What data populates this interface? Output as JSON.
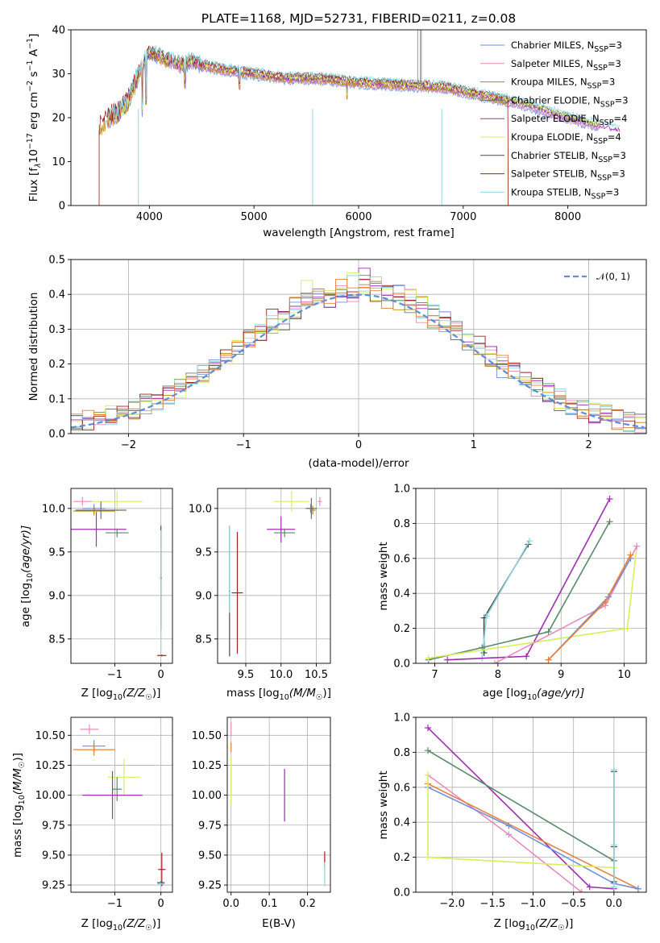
{
  "title": "PLATE=1168, MJD=52731, FIBERID=0211, z=0.08",
  "colors": {
    "Chabrier MILES": "#6f8fdc",
    "Salpeter MILES": "#e88bbe",
    "Kroupa MILES": "#b8860b",
    "Chabrier ELODIE": "#6f6f6f",
    "Salpeter ELODIE": "#9d2fb0",
    "Kroupa ELODIE": "#d7f05a",
    "Chabrier STELIB": "#4a4a4a",
    "Salpeter STELIB": "#a01f1f",
    "Kroupa STELIB": "#8fd8e0",
    "green": "#5a8a6a",
    "orange": "#e8803a"
  },
  "chart_data": [
    {
      "type": "line",
      "panel": "spectrum",
      "title": "PLATE=1168, MJD=52731, FIBERID=0211, z=0.08",
      "xlabel": "wavelength [Angstrom, rest frame]",
      "ylabel_main": "Flux [f",
      "ylabel_sub": "λ",
      "ylabel_rest": "10",
      "ylabel_exp": "−17",
      "ylabel_tail": " erg cm",
      "ylabel_exp2": "−2",
      "ylabel_s": " s",
      "ylabel_exp3": "−1",
      "ylabel_a": " A",
      "ylabel_exp4": "−1",
      "ylabel_end": "]",
      "xlim": [
        3250,
        8750
      ],
      "ylim": [
        0,
        40
      ],
      "xticks": [
        "4000",
        "5000",
        "6000",
        "7000",
        "8000"
      ],
      "yticks": [
        "0",
        "10",
        "20",
        "30",
        "40"
      ],
      "legend_position": "top-right",
      "legend": [
        {
          "base": "Chabrier MILES, N",
          "sub": "SSP",
          "tail": "=3"
        },
        {
          "base": "Salpeter MILES, N",
          "sub": "SSP",
          "tail": "=3"
        },
        {
          "base": "Kroupa MILES, N",
          "sub": "SSP",
          "tail": "=3"
        },
        {
          "base": "Chabrier ELODIE, N",
          "sub": "SSP",
          "tail": "=3"
        },
        {
          "base": "Salpeter ELODIE, N",
          "sub": "SSP",
          "tail": "=4"
        },
        {
          "base": "Kroupa ELODIE, N",
          "sub": "SSP",
          "tail": "=4"
        },
        {
          "base": "Chabrier STELIB, N",
          "sub": "SSP",
          "tail": "=3"
        },
        {
          "base": "Salpeter STELIB, N",
          "sub": "SSP",
          "tail": "=3"
        },
        {
          "base": "Kroupa STELIB, N",
          "sub": "SSP",
          "tail": "=3"
        }
      ],
      "series_shape": [
        [
          3500,
          17
        ],
        [
          3600,
          20
        ],
        [
          3700,
          21
        ],
        [
          3800,
          24
        ],
        [
          3900,
          30
        ],
        [
          3950,
          33
        ],
        [
          4000,
          35
        ],
        [
          4100,
          34
        ],
        [
          4200,
          33
        ],
        [
          4300,
          32
        ],
        [
          4400,
          33
        ],
        [
          4500,
          32
        ],
        [
          4700,
          31
        ],
        [
          5000,
          30
        ],
        [
          5300,
          29
        ],
        [
          5600,
          29
        ],
        [
          6000,
          28
        ],
        [
          6400,
          27.5
        ],
        [
          6800,
          27
        ],
        [
          7200,
          25
        ],
        [
          7600,
          23
        ],
        [
          8000,
          20
        ],
        [
          8500,
          17
        ]
      ]
    },
    {
      "type": "bar",
      "panel": "residual-histogram",
      "xlabel": "(data-model)/error",
      "ylabel": "Normed distribution",
      "xlim": [
        -2.5,
        2.5
      ],
      "ylim": [
        0,
        0.5
      ],
      "xticks": [
        "−2",
        "−1",
        "0",
        "1",
        "2"
      ],
      "yticks": [
        "0.0",
        "0.1",
        "0.2",
        "0.3",
        "0.4",
        "0.5"
      ],
      "legend_position": "top-right",
      "legend_label": "N(0,1)",
      "bin_width": 0.1,
      "gaussian": {
        "mean": 0,
        "sigma": 1
      }
    },
    {
      "type": "scatter",
      "panel": "age-vs-Z",
      "xlabel": "Z [log10(Z/Z☉)]",
      "ylabel": "age  [log10(age/yr)]",
      "xlim": [
        -1.95,
        0.25
      ],
      "ylim": [
        8.22,
        10.23
      ],
      "xticks": [
        "−1",
        "0"
      ],
      "yticks": [
        "8.5",
        "9.0",
        "9.5",
        "10.0"
      ],
      "points": [
        {
          "model": "Salpeter MILES",
          "x": -1.7,
          "y": 10.08,
          "xerr": 0.2,
          "yerr": 0.05
        },
        {
          "model": "Kroupa ELODIE",
          "x": -0.95,
          "y": 10.08,
          "xerr": 0.55,
          "yerr": 0.12
        },
        {
          "model": "Chabrier MILES",
          "x": -1.45,
          "y": 10.0,
          "xerr": 0.25,
          "yerr": 0.05
        },
        {
          "model": "Kroupa MILES",
          "x": -1.45,
          "y": 9.97,
          "xerr": 0.45,
          "yerr": 0.05
        },
        {
          "model": "Chabrier ELODIE",
          "x": -1.3,
          "y": 9.98,
          "xerr": 0.55,
          "yerr": 0.1
        },
        {
          "model": "Salpeter ELODIE",
          "x": -1.4,
          "y": 9.76,
          "xerr": 0.65,
          "yerr": 0.2
        },
        {
          "model": "green",
          "x": -0.95,
          "y": 9.72,
          "xerr": 0.25,
          "yerr": 0.05
        },
        {
          "model": "Chabrier STELIB",
          "x": 0.0,
          "y": 9.2,
          "xerr": 0.02,
          "yerr": 0.6
        },
        {
          "model": "Kroupa STELIB",
          "x": 0.0,
          "y": 9.05,
          "xerr": 0.02,
          "yerr": 0.7
        },
        {
          "model": "Salpeter STELIB",
          "x": 0.02,
          "y": 8.31,
          "xerr": 0.1,
          "yerr": 0.01
        }
      ]
    },
    {
      "type": "scatter",
      "panel": "age-vs-mass",
      "xlabel": "mass [log10(M/M☉)]",
      "xlim": [
        9.1,
        10.7
      ],
      "ylim": [
        8.22,
        10.23
      ],
      "xticks": [
        "9.5",
        "10.0",
        "10.5"
      ],
      "yticks": [
        "8.5",
        "9.0",
        "9.5",
        "10.0"
      ],
      "points": [
        {
          "model": "Salpeter MILES",
          "x": 10.55,
          "y": 10.08,
          "xerr": 0.03,
          "yerr": 0.05
        },
        {
          "model": "Kroupa ELODIE",
          "x": 10.15,
          "y": 10.08,
          "xerr": 0.25,
          "yerr": 0.12
        },
        {
          "model": "Chabrier MILES",
          "x": 10.42,
          "y": 10.0,
          "xerr": 0.05,
          "yerr": 0.05
        },
        {
          "model": "Kroupa MILES",
          "x": 10.45,
          "y": 9.98,
          "xerr": 0.04,
          "yerr": 0.05
        },
        {
          "model": "Chabrier ELODIE",
          "x": 10.43,
          "y": 10.0,
          "xerr": 0.08,
          "yerr": 0.12
        },
        {
          "model": "Salpeter ELODIE",
          "x": 10.0,
          "y": 9.76,
          "xerr": 0.2,
          "yerr": 0.15
        },
        {
          "model": "green",
          "x": 10.05,
          "y": 9.72,
          "xerr": 0.15,
          "yerr": 0.05
        },
        {
          "model": "Chabrier STELIB",
          "x": 9.27,
          "y": 9.05,
          "xerr": 0.01,
          "yerr": 0.75
        },
        {
          "model": "Kroupa STELIB",
          "x": 9.27,
          "y": 9.3,
          "xerr": 0.01,
          "yerr": 0.5
        },
        {
          "model": "Salpeter STELIB",
          "x": 9.38,
          "y": 9.03,
          "xerr": 0.08,
          "yerr": 0.7
        }
      ]
    },
    {
      "type": "line",
      "panel": "mass-weight-vs-age",
      "xlabel": "age  [log10(age/yr)]",
      "ylabel": "mass weight",
      "xlim": [
        6.7,
        10.35
      ],
      "ylim": [
        0,
        1
      ],
      "xticks": [
        "7",
        "8",
        "9",
        "10"
      ],
      "yticks": [
        "0.0",
        "0.2",
        "0.4",
        "0.6",
        "0.8",
        "1.0"
      ],
      "series": [
        {
          "model": "Chabrier STELIB",
          "x": [
            7.78,
            7.78,
            8.48
          ],
          "y": [
            0.06,
            0.26,
            0.68
          ]
        },
        {
          "model": "Kroupa STELIB",
          "x": [
            7.75,
            7.82,
            8.5
          ],
          "y": [
            0.03,
            0.27,
            0.7
          ]
        },
        {
          "model": "Salpeter ELODIE",
          "x": [
            7.2,
            8.45,
            9.77
          ],
          "y": [
            0.02,
            0.04,
            0.94
          ]
        },
        {
          "model": "green",
          "x": [
            6.9,
            7.75,
            8.8,
            9.77
          ],
          "y": [
            0.02,
            0.09,
            0.18,
            0.81
          ]
        },
        {
          "model": "Kroupa ELODIE",
          "x": [
            6.9,
            10.05,
            10.2
          ],
          "y": [
            0.03,
            0.2,
            0.67
          ]
        },
        {
          "model": "Salpeter MILES",
          "x": [
            7.95,
            9.7,
            10.2
          ],
          "y": [
            0.0,
            0.33,
            0.67
          ]
        },
        {
          "model": "Chabrier MILES",
          "x": [
            8.8,
            9.75,
            10.1
          ],
          "y": [
            0.02,
            0.38,
            0.6
          ]
        },
        {
          "model": "orange",
          "x": [
            8.8,
            9.7,
            10.1
          ],
          "y": [
            0.02,
            0.35,
            0.62
          ]
        }
      ]
    },
    {
      "type": "scatter",
      "panel": "mass-vs-Z",
      "xlabel": "Z [log10(Z/Z☉)]",
      "ylabel": "mass [log10(M/M☉)]",
      "xlim": [
        -1.95,
        0.25
      ],
      "ylim": [
        9.19,
        10.65
      ],
      "xticks": [
        "−1",
        "0"
      ],
      "yticks": [
        "9.25",
        "9.50",
        "9.75",
        "10.00",
        "10.25",
        "10.50"
      ],
      "points": [
        {
          "model": "Salpeter MILES",
          "x": -1.55,
          "y": 10.55,
          "xerr": 0.2,
          "yerr": 0.04
        },
        {
          "model": "Chabrier MILES",
          "x": -1.45,
          "y": 10.41,
          "xerr": 0.25,
          "yerr": 0.05
        },
        {
          "model": "orange",
          "x": -1.45,
          "y": 10.38,
          "xerr": 0.45,
          "yerr": 0.05
        },
        {
          "model": "Kroupa ELODIE",
          "x": -0.8,
          "y": 10.15,
          "xerr": 0.35,
          "yerr": 0.15
        },
        {
          "model": "green",
          "x": -0.95,
          "y": 10.05,
          "xerr": 0.1,
          "yerr": 0.1
        },
        {
          "model": "Salpeter ELODIE",
          "x": -1.05,
          "y": 10.0,
          "xerr": 0.65,
          "yerr": 0.2
        },
        {
          "model": "Salpeter STELIB",
          "x": 0.02,
          "y": 9.38,
          "xerr": 0.08,
          "yerr": 0.14
        },
        {
          "model": "Chabrier STELIB",
          "x": 0.0,
          "y": 9.27,
          "xerr": 0.08,
          "yerr": 0.01
        },
        {
          "model": "Kroupa STELIB",
          "x": 0.0,
          "y": 9.26,
          "xerr": 0.08,
          "yerr": 0.01
        }
      ]
    },
    {
      "type": "scatter",
      "panel": "mass-vs-EBV",
      "xlabel": "E(B-V)",
      "xlim": [
        -0.01,
        0.26
      ],
      "ylim": [
        9.19,
        10.65
      ],
      "xticks": [
        "0.0",
        "0.1",
        "0.2"
      ],
      "yticks": [
        "9.25",
        "9.50",
        "9.75",
        "10.00",
        "10.25",
        "10.50"
      ],
      "points": [
        {
          "model": "Salpeter MILES",
          "x": 0.0,
          "y": 10.55,
          "yerr": 0.06
        },
        {
          "model": "orange",
          "x": 0.0,
          "y": 10.4,
          "yerr": 0.04
        },
        {
          "model": "Kroupa ELODIE",
          "x": 0.0,
          "y": 10.12,
          "yerr": 0.2
        },
        {
          "model": "Salpeter ELODIE",
          "x": 0.14,
          "y": 10.0,
          "yerr": 0.22
        },
        {
          "model": "Salpeter STELIB",
          "x": 0.245,
          "y": 9.46,
          "yerr": 0.07
        },
        {
          "model": "Kroupa STELIB",
          "x": 0.245,
          "y": 9.34,
          "yerr": 0.1
        }
      ]
    },
    {
      "type": "line",
      "panel": "mass-weight-vs-Z",
      "xlabel": "Z [log10(Z/Z☉)]",
      "ylabel": "mass weight",
      "xlim": [
        -2.45,
        0.4
      ],
      "ylim": [
        0,
        1
      ],
      "xticks": [
        "−2.0",
        "−1.5",
        "−1.0",
        "−0.5",
        "0.0"
      ],
      "yticks": [
        "0.0",
        "0.2",
        "0.4",
        "0.6",
        "0.8",
        "1.0"
      ],
      "series": [
        {
          "model": "Salpeter ELODIE",
          "x": [
            -2.3,
            -0.3,
            0.0
          ],
          "y": [
            0.94,
            0.03,
            0.02
          ]
        },
        {
          "model": "green",
          "x": [
            -2.3,
            0.0
          ],
          "y": [
            0.81,
            0.18
          ]
        },
        {
          "model": "Salpeter MILES",
          "x": [
            -2.3,
            -1.3,
            -0.4
          ],
          "y": [
            0.67,
            0.33,
            0.0
          ]
        },
        {
          "model": "orange",
          "x": [
            -2.3,
            0.3
          ],
          "y": [
            0.62,
            0.02
          ]
        },
        {
          "model": "Chabrier MILES",
          "x": [
            -2.3,
            -1.3,
            0.0,
            0.3
          ],
          "y": [
            0.6,
            0.38,
            0.05,
            0.02
          ]
        },
        {
          "model": "Kroupa ELODIE",
          "x": [
            -2.3,
            -2.3,
            0.0
          ],
          "y": [
            0.67,
            0.2,
            0.14
          ]
        },
        {
          "model": "Chabrier STELIB",
          "x": [
            0.0,
            0.0,
            0.0
          ],
          "y": [
            0.06,
            0.26,
            0.69
          ]
        },
        {
          "model": "Kroupa STELIB",
          "x": [
            0.0,
            0.0,
            0.0
          ],
          "y": [
            0.03,
            0.27,
            0.7
          ]
        }
      ]
    }
  ],
  "labels": {
    "age_ylabel": "age  [log",
    "age_ylabel_sub": "10",
    "age_ylabel_tail": "(age/yr)]",
    "z_xlabel": "Z [log",
    "z_xlabel_sub": "10",
    "z_xlabel_tail": "(Z/Z",
    "z_xlabel_sun": "☉",
    "z_xlabel_end": ")]",
    "mass_xlabel": "mass [log",
    "mass_xlabel_sub": "10",
    "mass_xlabel_tail": "(M/M",
    "mass_xlabel_sun": "☉",
    "mass_xlabel_end": ")]",
    "ebv": "E(B-V)",
    "mass_weight": "mass weight",
    "normed": "Normed distribution",
    "resid": "(data-model)/error",
    "wave": "wavelength [Angstrom, rest frame]",
    "gauss_label": "𝒩(0, 1)"
  }
}
